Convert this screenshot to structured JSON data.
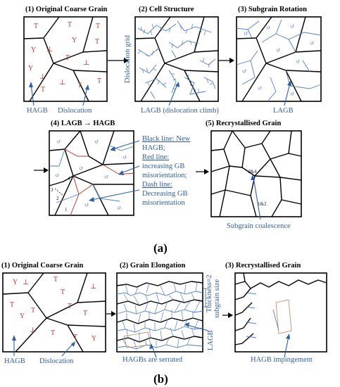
{
  "part_a": {
    "label": "(a)",
    "panels": [
      {
        "title": "(1) Original Coarse Grain",
        "captions": [
          "HAGB",
          "Dislocation"
        ]
      },
      {
        "title": "(2) Cell Structure",
        "captions": [
          "LAGB (dislocation climb)"
        ],
        "side_label": "Dislocation grid"
      },
      {
        "title": "(3) Subgrain Rotation",
        "captions": [
          "LAGB"
        ]
      },
      {
        "title": "(4) LAGB → HAGB",
        "notes": [
          "Black line: New",
          "HAGB;",
          "Red line:",
          "increasing GB",
          "misorientation;",
          "Dash line:",
          "Decreasing GB",
          "misorientation"
        ],
        "marks": [
          "4",
          "3",
          "2",
          "1"
        ]
      },
      {
        "title": "(5) Recrystallised Grain",
        "captions": [
          "Subgrain coalescence"
        ],
        "marks": [
          "3&4",
          "1&2"
        ]
      }
    ]
  },
  "part_b": {
    "label": "(b)",
    "panels": [
      {
        "title": "(1) Original Coarse Grain",
        "captions": [
          "HAGB",
          "Dislocation"
        ]
      },
      {
        "title": "(2) Grain Elongation",
        "captions": [
          "HAGBs are serrated"
        ],
        "side_labels": [
          "Thickness≈2",
          "subgrain size",
          "LAGB"
        ]
      },
      {
        "title": "(3) Recrystallised Grain",
        "captions": [
          "HAGB impingement"
        ]
      }
    ]
  },
  "colors": {
    "hagb": "#000000",
    "lagb": "#4a7fc9",
    "dislocation": "#c0392b",
    "caption": "#2b5fa8"
  }
}
